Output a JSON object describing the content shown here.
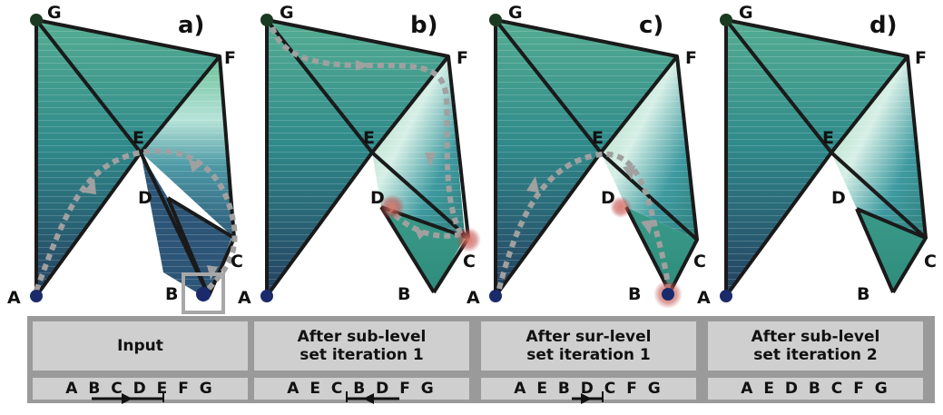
{
  "panels": [
    {
      "label": "a)",
      "vertices": {
        "G": "G",
        "F": "F",
        "E": "E",
        "D": "D",
        "C": "C",
        "B": "B",
        "A": "A"
      }
    },
    {
      "label": "b)",
      "vertices": {
        "G": "G",
        "F": "F",
        "E": "E",
        "D": "D",
        "C": "C",
        "B": "B",
        "A": "A"
      }
    },
    {
      "label": "c)",
      "vertices": {
        "G": "G",
        "F": "F",
        "E": "E",
        "D": "D",
        "C": "C",
        "B": "B",
        "A": "A"
      }
    },
    {
      "label": "d)",
      "vertices": {
        "G": "G",
        "F": "F",
        "E": "E",
        "D": "D",
        "C": "C",
        "B": "B",
        "A": "A"
      }
    }
  ],
  "table": {
    "titles": [
      "Input",
      "After sub-level\nset iteration 1",
      "After sur-level\nset iteration 1",
      "After sub-level\nset iteration 2"
    ],
    "sequences": [
      "A B C D E F G",
      "A E C B D F G",
      "A E B D C F G",
      "A E D B C F G"
    ]
  },
  "colors": {
    "top": "#4fa88e",
    "mid": "#2f8088",
    "bottom": "#244a63",
    "light_band": "#a8ddd4",
    "edge": "#1a1a1a",
    "critical_point": "#1b2a6b",
    "highlight": "#c0504d",
    "path": "#a0a0a0"
  }
}
